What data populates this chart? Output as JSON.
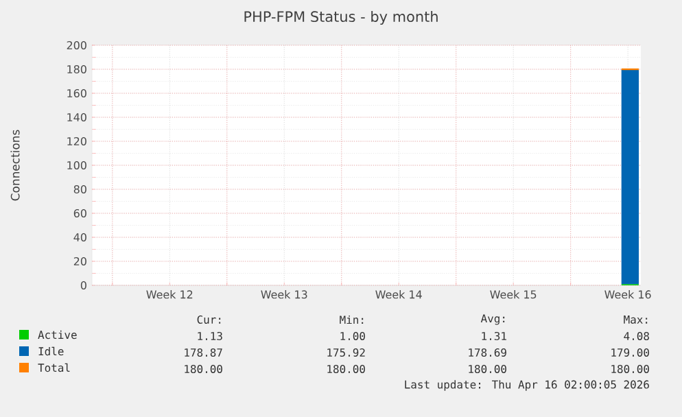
{
  "chart_data": {
    "type": "area",
    "title": "PHP-FPM Status - by month",
    "ylabel": "Connections",
    "stacked": true,
    "grid": true,
    "legend": "bottom",
    "xlim": [
      "2026-03-14T18:00",
      "2026-04-17T07:00"
    ],
    "xticks": [
      {
        "value": "2026-03-16",
        "label": null
      },
      {
        "value": "2026-03-19T12:00",
        "label": "Week 12"
      },
      {
        "value": "2026-03-23",
        "label": null
      },
      {
        "value": "2026-03-26T12:00",
        "label": "Week 13"
      },
      {
        "value": "2026-03-30",
        "label": null
      },
      {
        "value": "2026-04-02T12:00",
        "label": "Week 14"
      },
      {
        "value": "2026-04-06",
        "label": null
      },
      {
        "value": "2026-04-09T12:00",
        "label": "Week 15"
      },
      {
        "value": "2026-04-13",
        "label": null
      },
      {
        "value": "2026-04-16T12:00",
        "label": "Week 16"
      }
    ],
    "ylim": [
      0,
      200
    ],
    "yticks": [
      0,
      20,
      40,
      60,
      80,
      100,
      120,
      140,
      160,
      180,
      200
    ],
    "x": [
      "2026-04-16T02:30",
      "2026-04-17T04:00"
    ],
    "series": [
      {
        "name": "Active",
        "color": "#00cc00",
        "values": [
          1,
          1
        ]
      },
      {
        "name": "Idle",
        "color": "#0066b3",
        "values": [
          179,
          179
        ]
      },
      {
        "name": "Total",
        "type": "line",
        "color": "#ff8000",
        "values": [
          180,
          180
        ]
      }
    ],
    "annotations": [
      "Cur:",
      "Min:",
      "Avg:",
      "Max:",
      "1.13",
      "1.00",
      "1.31",
      "4.08",
      "178.87",
      "175.92",
      "178.69",
      "179.00",
      "180.00",
      "180.00",
      "180.00",
      "180.00",
      "Last update: Thu Apr 16 02:00:05 2026"
    ]
  }
}
